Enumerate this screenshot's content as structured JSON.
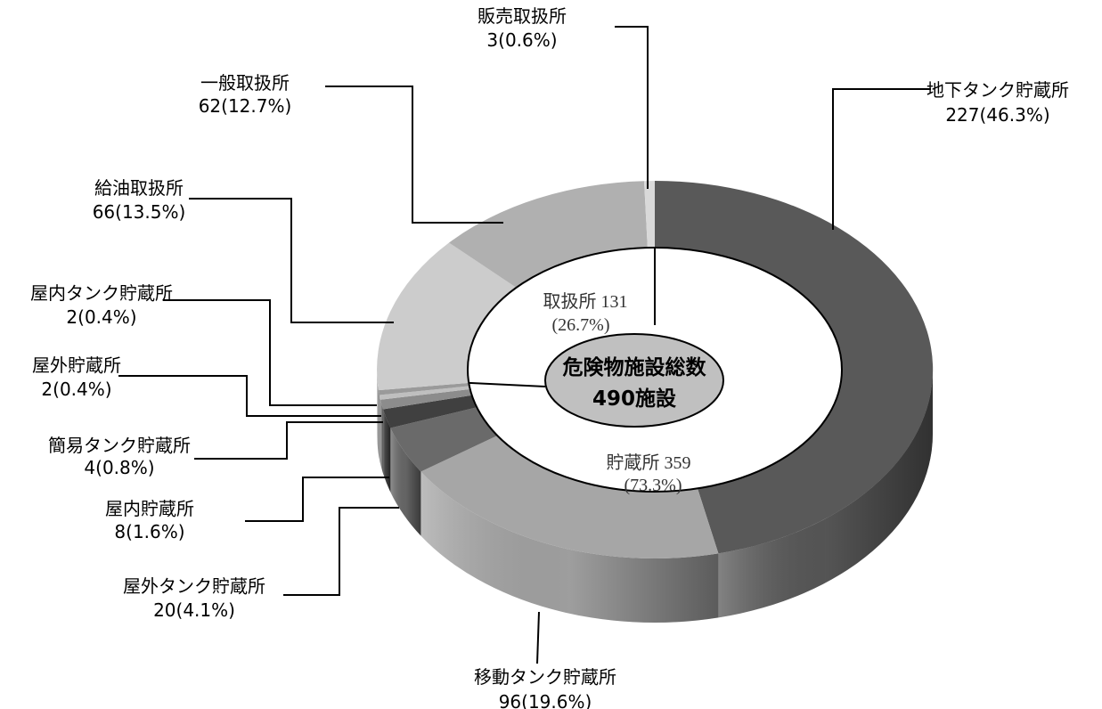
{
  "chart_data": {
    "type": "pie",
    "style": "3d-donut",
    "center_label": [
      "危険物施設総数",
      "490施設"
    ],
    "total": 490,
    "slices": [
      {
        "name": "地下タンク貯蔵所",
        "value": 227,
        "percent": "46.3%",
        "value_text": "227(46.3%)",
        "color": "#595959",
        "group": "storage"
      },
      {
        "name": "移動タンク貯蔵所",
        "value": 96,
        "percent": "19.6%",
        "value_text": "96(19.6%)",
        "color": "#a6a6a6",
        "group": "storage"
      },
      {
        "name": "屋外タンク貯蔵所",
        "value": 20,
        "percent": "4.1%",
        "value_text": "20(4.1%)",
        "color": "#6a6a6a",
        "group": "storage"
      },
      {
        "name": "屋内貯蔵所",
        "value": 8,
        "percent": "1.6%",
        "value_text": "8(1.6%)",
        "color": "#404040",
        "group": "storage"
      },
      {
        "name": "簡易タンク貯蔵所",
        "value": 4,
        "percent": "0.8%",
        "value_text": "4(0.8%)",
        "color": "#8c8c8c",
        "group": "storage"
      },
      {
        "name": "屋外貯蔵所",
        "value": 2,
        "percent": "0.4%",
        "value_text": "2(0.4%)",
        "color": "#bfbfbf",
        "group": "storage"
      },
      {
        "name": "屋内タンク貯蔵所",
        "value": 2,
        "percent": "0.4%",
        "value_text": "2(0.4%)",
        "color": "#9a9a9a",
        "group": "storage"
      },
      {
        "name": "給油取扱所",
        "value": 66,
        "percent": "13.5%",
        "value_text": "66(13.5%)",
        "color": "#cccccc",
        "group": "handling"
      },
      {
        "name": "一般取扱所",
        "value": 62,
        "percent": "12.7%",
        "value_text": "62(12.7%)",
        "color": "#b0b0b0",
        "group": "handling"
      },
      {
        "name": "販売取扱所",
        "value": 3,
        "percent": "0.6%",
        "value_text": "3(0.6%)",
        "color": "#d9d9d9",
        "group": "handling"
      }
    ],
    "groups": [
      {
        "key": "handling",
        "label": "取扱所 131",
        "value": 131,
        "percent_text": "(26.7%)"
      },
      {
        "key": "storage",
        "label": "貯蔵所 359",
        "value": 359,
        "percent_text": "(73.3%)"
      }
    ],
    "legend": "none"
  }
}
